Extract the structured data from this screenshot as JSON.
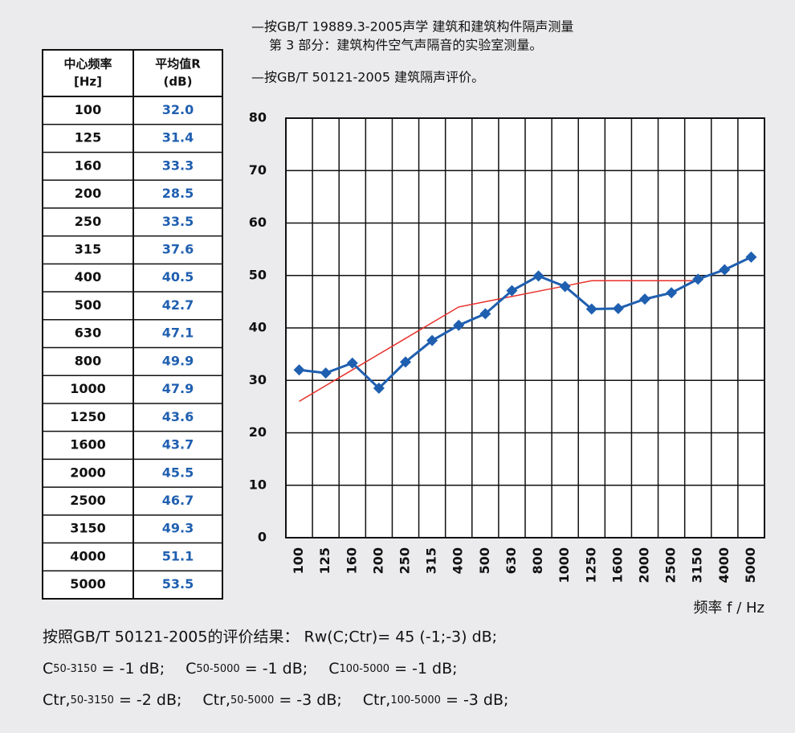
{
  "chart_data": {
    "type": "line",
    "notes": [
      "—按GB/T 19889.3-2005声学  建筑和建筑构件隔声测量",
      "第 3 部分：建筑构件空气声隔音的实验室测量。",
      "—按GB/T 50121-2005  建筑隔声评价。"
    ],
    "x_label": "频率 f / Hz",
    "categories": [
      "100",
      "125",
      "160",
      "200",
      "250",
      "315",
      "400",
      "500",
      "630",
      "800",
      "1000",
      "1250",
      "1600",
      "2000",
      "2500",
      "3150",
      "4000",
      "5000"
    ],
    "series": [
      {
        "color": "#1f5fb0",
        "marker": "diamond",
        "values": [
          32.0,
          31.4,
          33.3,
          28.5,
          33.5,
          37.6,
          40.5,
          42.7,
          47.1,
          49.9,
          47.9,
          43.6,
          43.7,
          45.5,
          46.7,
          49.3,
          51.1,
          53.5
        ]
      },
      {
        "color": "#e8302a",
        "values": [
          26,
          29,
          32,
          35,
          38,
          41,
          44,
          45,
          46,
          47,
          48,
          49,
          49,
          49,
          49,
          49,
          null,
          null
        ]
      }
    ],
    "ylim": [
      0,
      80
    ],
    "yticks": [
      0,
      10,
      20,
      30,
      40,
      50,
      60,
      70,
      80
    ],
    "grid": true
  },
  "table": {
    "header": [
      [
        "中心频率",
        "[Hz]"
      ],
      [
        "平均值R",
        "(dB)"
      ]
    ],
    "rows": [
      [
        "100",
        "32.0"
      ],
      [
        "125",
        "31.4"
      ],
      [
        "160",
        "33.3"
      ],
      [
        "200",
        "28.5"
      ],
      [
        "250",
        "33.5"
      ],
      [
        "315",
        "37.6"
      ],
      [
        "400",
        "40.5"
      ],
      [
        "500",
        "42.7"
      ],
      [
        "630",
        "47.1"
      ],
      [
        "800",
        "49.9"
      ],
      [
        "1000",
        "47.9"
      ],
      [
        "1250",
        "43.6"
      ],
      [
        "1600",
        "43.7"
      ],
      [
        "2000",
        "45.5"
      ],
      [
        "2500",
        "46.7"
      ],
      [
        "3150",
        "49.3"
      ],
      [
        "4000",
        "51.1"
      ],
      [
        "5000",
        "53.5"
      ]
    ]
  },
  "results": {
    "summary": "按照GB/T  50121-2005的评价结果：  Rw(C;Ctr)= 45 (-1;-3)  dB;",
    "lines": [
      [
        {
          "base": "C",
          "sub": "50-3150",
          "rest": " = -1 dB;"
        },
        {
          "base": "C",
          "sub": "50-5000",
          "rest": " = -1 dB;"
        },
        {
          "base": "C",
          "sub": "100-5000",
          "rest": " = -1 dB;"
        }
      ],
      [
        {
          "base": "Ctr,",
          "sub": "50-3150",
          "rest": " = -2 dB;"
        },
        {
          "base": "Ctr,",
          "sub": "50-5000",
          "rest": " = -3 dB;"
        },
        {
          "base": "Ctr,",
          "sub": "100-5000",
          "rest": " = -3 dB;"
        }
      ]
    ]
  }
}
